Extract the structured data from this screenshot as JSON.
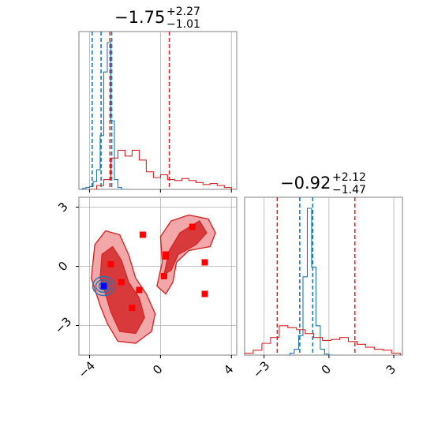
{
  "colors": {
    "blue": "#1f77b4",
    "red": "#d62728",
    "axis": "#808080",
    "grid": "#b0b0b0",
    "red_fill_light": "#f2a7a8",
    "red_fill_dark": "#d83a3c"
  },
  "titles": {
    "param1": {
      "main": "−1.75",
      "sup": "+2.27",
      "sub": "−1.01"
    },
    "param2": {
      "main": "−0.92",
      "sup": "+2.12",
      "sub": "−1.47"
    }
  },
  "chart_data": [
    {
      "type": "histogram",
      "panel": "top-left marginal of parameter 1",
      "xlim": [
        -4.6,
        4.3
      ],
      "x_ticks": [
        -4,
        0,
        4
      ],
      "grid": true,
      "series": [
        {
          "color": "blue",
          "bins_x": [
            -4.6,
            -4.4,
            -4.2,
            -4.0,
            -3.8,
            -3.6,
            -3.4,
            -3.2,
            -3.0,
            -2.8,
            -2.6,
            -2.4,
            -2.2,
            -2.0
          ],
          "counts": [
            0,
            1,
            2,
            3,
            8,
            20,
            55,
            120,
            150,
            70,
            10,
            2,
            0,
            0
          ],
          "quantile_lines": [
            -3.85,
            -3.35,
            -2.75
          ]
        },
        {
          "color": "red",
          "bins_x": [
            -4.0,
            -3.6,
            -3.2,
            -2.8,
            -2.4,
            -2.0,
            -1.6,
            -1.2,
            -0.8,
            -0.4,
            0.0,
            0.4,
            0.8,
            1.2,
            1.6,
            2.0,
            2.4,
            2.8,
            3.2,
            3.6,
            4.0
          ],
          "counts": [
            0,
            4,
            10,
            32,
            40,
            34,
            40,
            30,
            18,
            12,
            15,
            10,
            9,
            11,
            9,
            7,
            5,
            6,
            4,
            2,
            0
          ],
          "quantile_lines": [
            -2.85,
            0.5
          ]
        }
      ]
    },
    {
      "type": "scatter",
      "panel": "bottom-left 2D corner plot, parameter 1 vs parameter 2",
      "xlim": [
        -4.6,
        4.3
      ],
      "ylim": [
        -4.5,
        3.5
      ],
      "x_ticks": [
        -4,
        0,
        4
      ],
      "y_ticks": [
        -3,
        0,
        3
      ],
      "grid": true,
      "red_points": [
        [
          -1.0,
          1.6
        ],
        [
          1.8,
          2.0
        ],
        [
          0.3,
          0.6
        ],
        [
          0.3,
          0.5
        ],
        [
          2.5,
          0.2
        ],
        [
          -2.8,
          0.1
        ],
        [
          0.2,
          -0.5
        ],
        [
          -2.2,
          -0.8
        ],
        [
          -1.2,
          -1.2
        ],
        [
          -1.6,
          -2.1
        ],
        [
          2.5,
          -1.4
        ]
      ],
      "blue_points": [
        [
          -3.2,
          -1.0
        ]
      ],
      "contours": "red filled density contours (two lobes) and small blue contour near (-3.2, -1.0)"
    },
    {
      "type": "histogram",
      "panel": "bottom-right marginal of parameter 2",
      "xlim": [
        -3.9,
        3.4
      ],
      "x_ticks": [
        -3,
        0,
        3
      ],
      "grid": true,
      "series": [
        {
          "color": "blue",
          "bins_x": [
            -2.0,
            -1.8,
            -1.6,
            -1.4,
            -1.2,
            -1.0,
            -0.8,
            -0.6,
            -0.4,
            -0.2,
            0.0
          ],
          "counts": [
            0,
            2,
            6,
            20,
            80,
            150,
            90,
            30,
            6,
            1,
            0
          ],
          "quantile_lines": [
            -1.35,
            -0.75
          ]
        },
        {
          "color": "red",
          "bins_x": [
            -3.9,
            -3.5,
            -3.1,
            -2.7,
            -2.3,
            -1.9,
            -1.5,
            -1.1,
            -0.7,
            -0.3,
            0.1,
            0.5,
            0.9,
            1.3,
            1.7,
            2.1,
            2.5,
            2.9,
            3.3
          ],
          "counts": [
            2,
            5,
            12,
            18,
            30,
            28,
            26,
            22,
            18,
            15,
            16,
            18,
            14,
            11,
            8,
            6,
            5,
            2,
            0
          ],
          "quantile_lines": [
            -2.39,
            1.2
          ]
        }
      ]
    }
  ]
}
